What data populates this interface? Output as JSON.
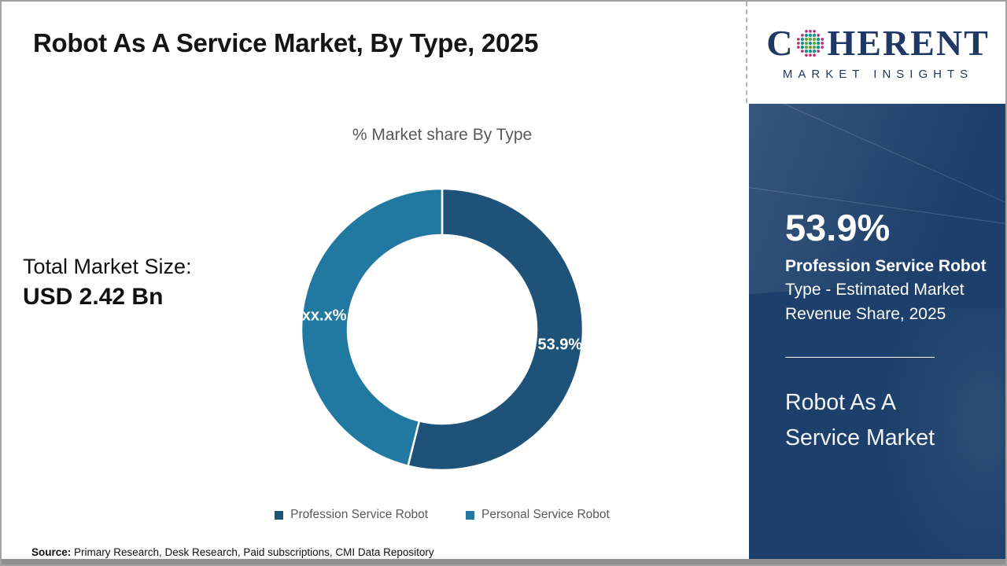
{
  "slide": {
    "title": "Robot As A Service Market, By Type, 2025",
    "source_label": "Source:",
    "source_text": " Primary Research, Desk Research, Paid subscriptions, CMI Data Repository"
  },
  "left_panel": {
    "total_label": "Total Market Size:",
    "total_value": "USD 2.42 Bn"
  },
  "chart_data": {
    "type": "pie",
    "donut": true,
    "title": "% Market share By Type",
    "categories": [
      "Profession Service Robot",
      "Personal Service Robot"
    ],
    "values": [
      53.9,
      46.1
    ],
    "data_labels": [
      "53.9%",
      "xx.x%"
    ],
    "colors": [
      "#1E5279",
      "#2179A2"
    ],
    "start_angle_deg": 0,
    "direction": "clockwise",
    "legend_position": "bottom"
  },
  "logo": {
    "text_c": "C",
    "text_rest": "HERENT",
    "subtitle": "MARKET INSIGHTS",
    "brand_color": "#1f3864",
    "globe_dot_colors": {
      "outer": "#BE2E74",
      "teal": "#0F9390",
      "green": "#68A43B"
    }
  },
  "sidebar": {
    "stat_value": "53.9%",
    "stat_bold_part": "Profession Service Robot",
    "stat_regular_part": " Type - Estimated Market Revenue Share, 2025",
    "market_name_line1": "Robot As A",
    "market_name_line2": "Service Market",
    "bg_color": "#1c3f6b"
  }
}
